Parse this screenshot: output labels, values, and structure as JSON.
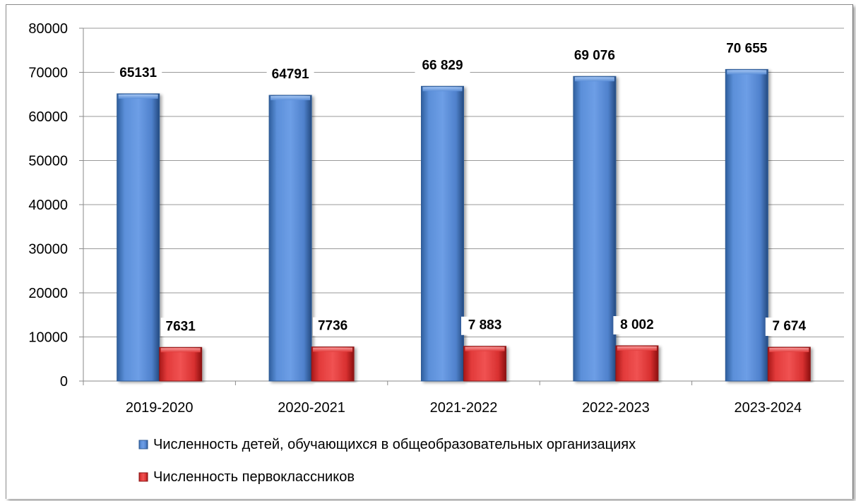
{
  "chart_data": {
    "type": "bar",
    "categories": [
      "2019-2020",
      "2020-2021",
      "2021-2022",
      "2022-2023",
      "2023-2024"
    ],
    "series": [
      {
        "name": "Численность детей, обучающихся в общеобразовательных организациях",
        "values": [
          65131,
          64791,
          66829,
          69076,
          70655
        ],
        "labels": [
          "65131",
          "64791",
          "66 829",
          "69 076",
          "70 655"
        ],
        "color": "#4f81bd"
      },
      {
        "name": "Численность первоклассников",
        "values": [
          7631,
          7736,
          7883,
          8002,
          7674
        ],
        "labels": [
          "7631",
          "7736",
          "7 883",
          "8 002",
          "7 674"
        ],
        "color": "#e03c3c"
      }
    ],
    "yticks": [
      "0",
      "10000",
      "20000",
      "30000",
      "40000",
      "50000",
      "60000",
      "70000",
      "80000"
    ],
    "ylim": [
      0,
      80000
    ],
    "grid": true,
    "legend_position": "bottom"
  }
}
